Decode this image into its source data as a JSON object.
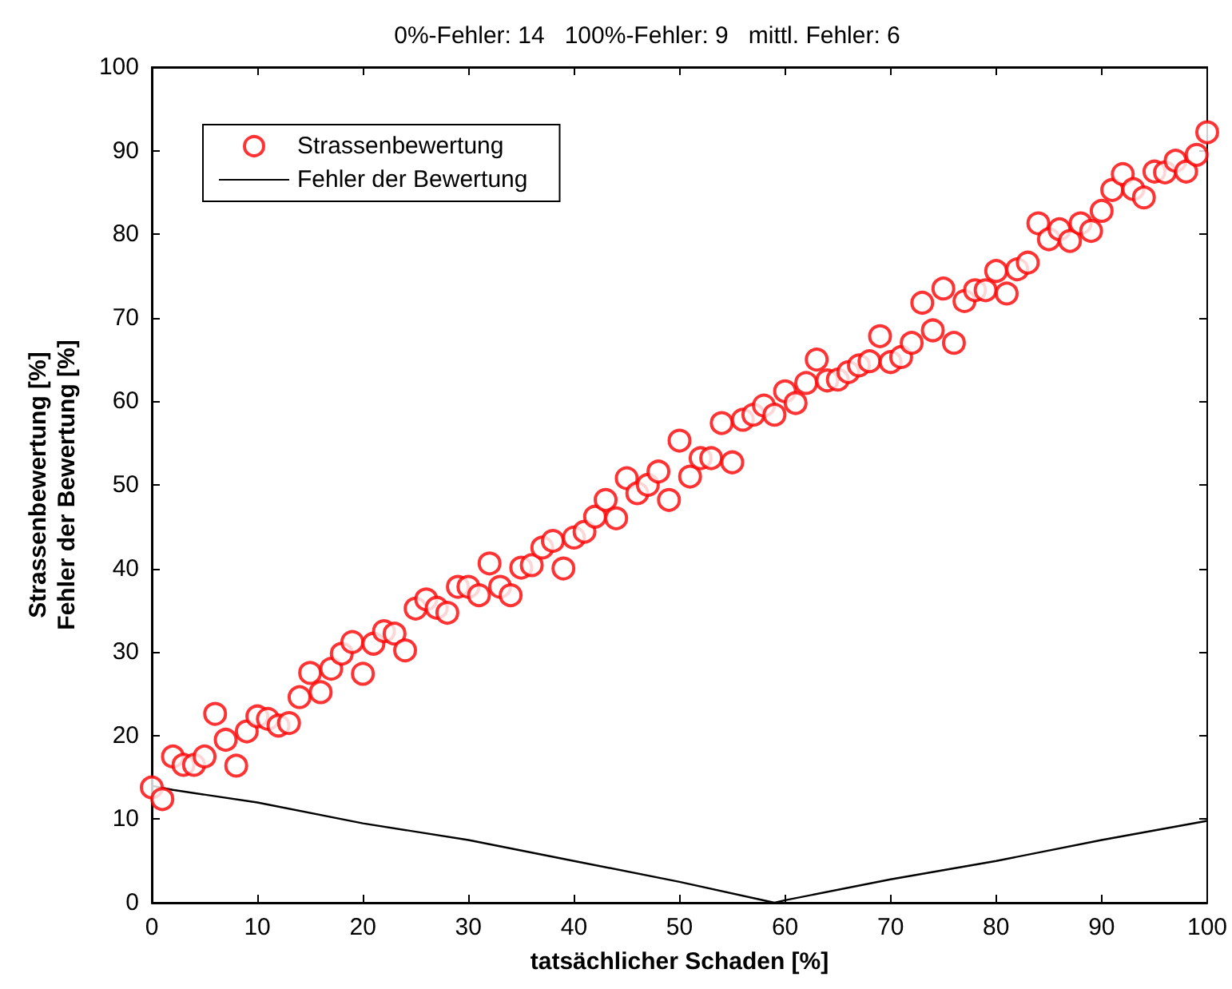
{
  "chart_data": {
    "type": "scatter",
    "title": "0%-Fehler: 14   100%-Fehler: 9   mittl. Fehler: 6",
    "xlabel": "tatsächlicher Schaden [%]",
    "ylabel": "Strassenbewertung [%]\nFehler der Bewertung [%]",
    "xlim": [
      0,
      100
    ],
    "xticks": [
      0,
      10,
      20,
      30,
      40,
      50,
      60,
      70,
      80,
      90,
      100
    ],
    "ylim": [
      0,
      100
    ],
    "yticks": [
      0,
      10,
      20,
      30,
      40,
      50,
      60,
      70,
      80,
      90,
      100
    ],
    "grid": false,
    "legend": "top left",
    "series": [
      {
        "name": "Strassenbewertung",
        "marker": "circle",
        "color": "#ff0000",
        "x": [
          0,
          1,
          2,
          3,
          4,
          5,
          6,
          7,
          8,
          9,
          10,
          11,
          12,
          13,
          14,
          15,
          16,
          17,
          18,
          19,
          20,
          21,
          22,
          23,
          24,
          25,
          26,
          27,
          28,
          29,
          30,
          31,
          32,
          33,
          34,
          35,
          36,
          37,
          38,
          39,
          40,
          41,
          42,
          43,
          44,
          45,
          46,
          47,
          48,
          49,
          50,
          51,
          52,
          53,
          54,
          55,
          56,
          57,
          58,
          59,
          60,
          61,
          62,
          63,
          64,
          65,
          66,
          67,
          68,
          69,
          70,
          71,
          72,
          73,
          74,
          75,
          76,
          77,
          78,
          79,
          80,
          81,
          82,
          83,
          84,
          85,
          86,
          87,
          88,
          89,
          90,
          91,
          92,
          93,
          94,
          95,
          96,
          97,
          98,
          99,
          100
        ],
        "values": [
          13.8,
          12.4,
          17.5,
          16.5,
          16.5,
          17.5,
          22.6,
          19.5,
          16.4,
          20.5,
          22.3,
          22,
          21.2,
          21.5,
          24.6,
          27.5,
          25.2,
          28,
          29.8,
          31.2,
          27.4,
          31,
          32.5,
          32.2,
          30.2,
          35.2,
          36.3,
          35.3,
          34.7,
          37.8,
          37.8,
          36.8,
          40.6,
          37.8,
          36.8,
          40.1,
          40.4,
          42.5,
          43.3,
          40,
          43.7,
          44.4,
          46.2,
          48.2,
          46,
          50.8,
          49,
          50,
          51.6,
          48.2,
          55.3,
          51,
          53.2,
          53.2,
          57.4,
          52.7,
          57.8,
          58.4,
          59.5,
          58.4,
          61.2,
          59.8,
          62.2,
          65,
          62.5,
          62.6,
          63.5,
          64.3,
          64.8,
          67.8,
          64.7,
          65.3,
          67,
          71.8,
          68.5,
          73.5,
          67,
          72,
          73.3,
          73.3,
          75.6,
          72.9,
          75.8,
          76.6,
          81.3,
          79.4,
          80.6,
          79.2,
          81.3,
          80.4,
          82.8,
          85.3,
          87.2,
          85.4,
          84.4,
          87.5,
          87.4,
          88.8,
          87.5,
          89.5,
          92.2
        ]
      },
      {
        "name": "Fehler der Bewertung",
        "type": "line",
        "marker": "none",
        "line_style": "solid",
        "color": "#000000",
        "x": [
          0,
          2,
          10,
          20,
          30,
          40,
          50,
          59,
          60,
          70,
          80,
          90,
          100
        ],
        "values": [
          14,
          13.5,
          12,
          9.5,
          7.5,
          5,
          2.5,
          0,
          0.3,
          2.8,
          5,
          7.5,
          9.8
        ]
      }
    ]
  }
}
